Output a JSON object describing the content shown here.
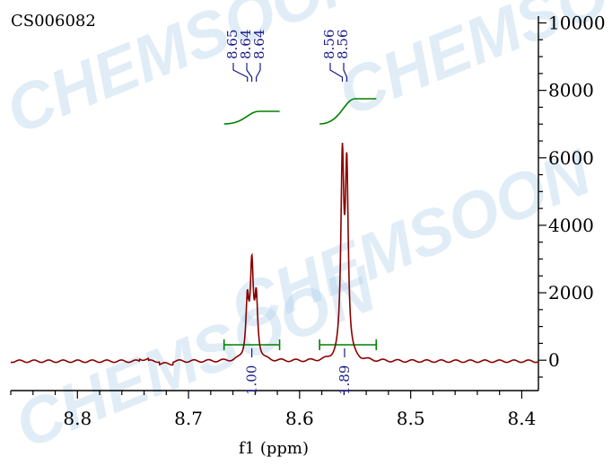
{
  "sample_id": "CS006082",
  "watermark": "CHEMSOON",
  "chart_data": {
    "type": "line",
    "title": "",
    "xlabel": "f1 (ppm)",
    "ylabel": "",
    "x_reversed": true,
    "xlim": [
      8.86,
      8.385
    ],
    "ylim": [
      -900,
      10200
    ],
    "x_ticks": [
      8.8,
      8.7,
      8.6,
      8.5,
      8.4
    ],
    "x_tick_labels": [
      "8.8",
      "8.7",
      "8.6",
      "8.5",
      "8.4"
    ],
    "y_ticks": [
      0,
      2000,
      4000,
      6000,
      8000,
      10000
    ],
    "y_tick_labels": [
      "0",
      "2000",
      "4000",
      "6000",
      "8000",
      "10000"
    ],
    "grid": false,
    "peaks": [
      {
        "ppm": 8.647,
        "height": 1700
      },
      {
        "ppm": 8.643,
        "height": 2650
      },
      {
        "ppm": 8.639,
        "height": 1750
      },
      {
        "ppm": 8.5615,
        "height": 5700
      },
      {
        "ppm": 8.5575,
        "height": 5450
      }
    ],
    "peak_labels": [
      {
        "text": "8.65",
        "ppm": 8.647
      },
      {
        "text": "8.64",
        "ppm": 8.643
      },
      {
        "text": "8.64",
        "ppm": 8.639
      },
      {
        "text": "8.56",
        "ppm": 8.5615
      },
      {
        "text": "8.56",
        "ppm": 8.5575
      }
    ],
    "integrals": [
      {
        "from": 8.668,
        "to": 8.618,
        "value": "1.00"
      },
      {
        "from": 8.582,
        "to": 8.531,
        "value": "1.89"
      }
    ],
    "colors": {
      "spectrum": "#8b0000",
      "integral": "#008000",
      "labels": "#1a1a8c"
    }
  }
}
